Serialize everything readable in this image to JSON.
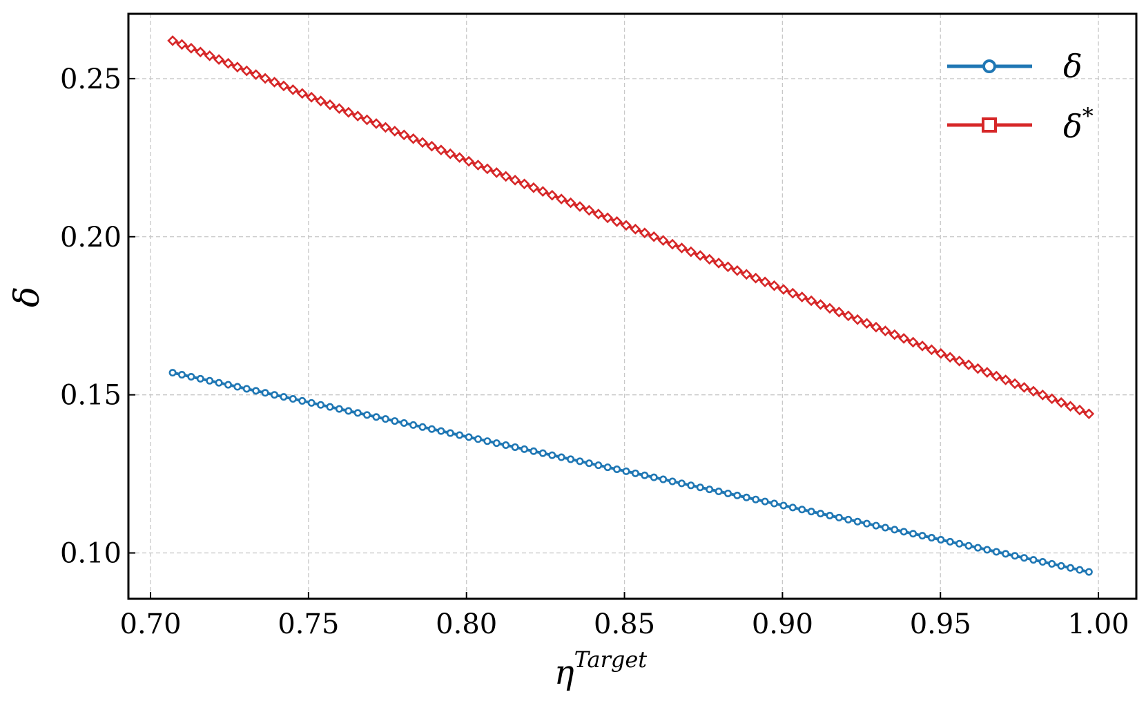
{
  "chart_data": {
    "type": "line",
    "title": "",
    "xlabel": "η",
    "xlabel_superscript": "Target",
    "ylabel": "δ",
    "xlim": [
      0.693,
      1.012
    ],
    "ylim": [
      0.0855,
      0.2705
    ],
    "xticks": [
      0.7,
      0.75,
      0.8,
      0.85,
      0.9,
      0.95,
      1.0
    ],
    "xtick_labels": [
      "0.70",
      "0.75",
      "0.80",
      "0.85",
      "0.90",
      "0.95",
      "1.00"
    ],
    "yticks": [
      0.1,
      0.15,
      0.2,
      0.25
    ],
    "ytick_labels": [
      "0.10",
      "0.15",
      "0.20",
      "0.25"
    ],
    "grid": true,
    "legend_position": "top-right",
    "x_range": {
      "start": 0.707,
      "end": 0.997,
      "points": 100
    },
    "series": [
      {
        "name": "δ",
        "name_superscript": "",
        "color": "#1f77b4",
        "marker": "circle",
        "legend_marker": "circle",
        "y_start": 0.157,
        "y_end": 0.094
      },
      {
        "name": "δ",
        "name_superscript": "*",
        "color": "#d62728",
        "marker": "diamond",
        "legend_marker": "square",
        "y_start": 0.262,
        "y_end": 0.144
      }
    ]
  }
}
